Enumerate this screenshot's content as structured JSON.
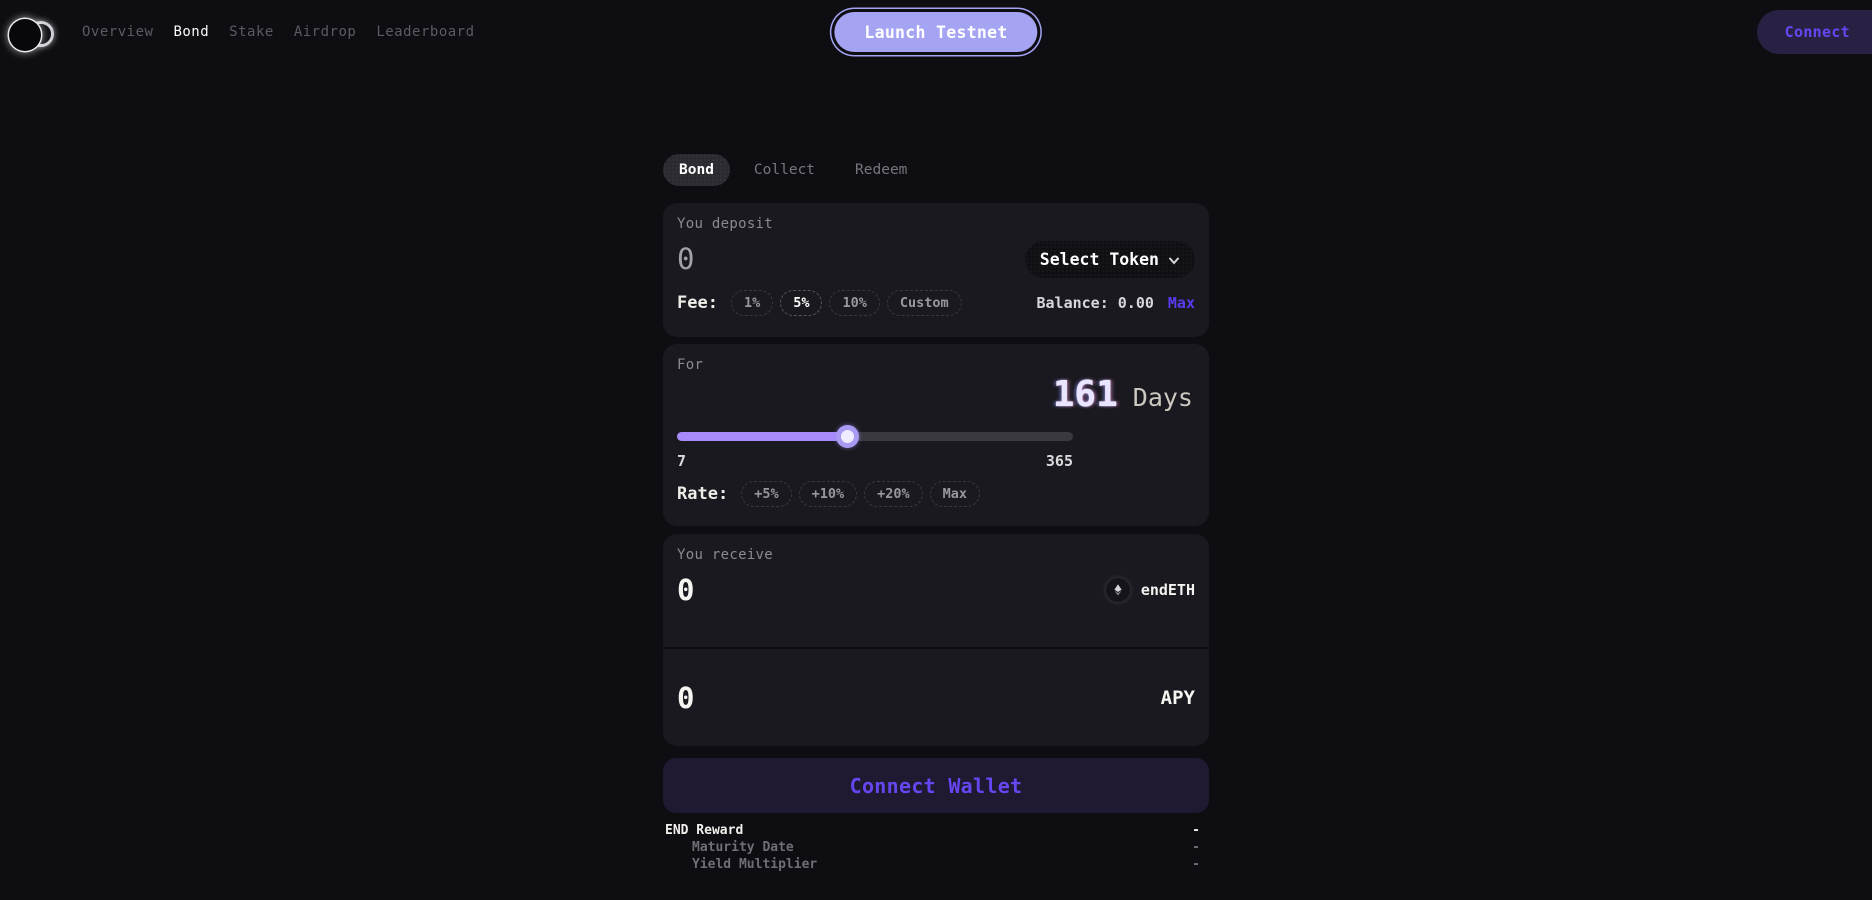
{
  "nav": {
    "links": [
      {
        "label": "Overview",
        "active": false
      },
      {
        "label": "Bond",
        "active": true
      },
      {
        "label": "Stake",
        "active": false
      },
      {
        "label": "Airdrop",
        "active": false
      },
      {
        "label": "Leaderboard",
        "active": false
      }
    ],
    "launch_button": "Launch Testnet",
    "connect_button": "Connect"
  },
  "tabs": [
    {
      "label": "Bond",
      "active": true
    },
    {
      "label": "Collect",
      "active": false
    },
    {
      "label": "Redeem",
      "active": false
    }
  ],
  "deposit_card": {
    "label": "You deposit",
    "amount": "0",
    "token_selector": "Select Token",
    "fee_label": "Fee:",
    "fee_options": [
      "1%",
      "5%",
      "10%",
      "Custom"
    ],
    "fee_selected": "5%",
    "balance_label": "Balance: 0.00",
    "max_label": "Max"
  },
  "duration_card": {
    "label": "For",
    "days_value": "161",
    "days_unit": "Days",
    "slider": {
      "min": "7",
      "max": "365",
      "value": 161,
      "percent": 43
    },
    "rate_label": "Rate:",
    "rate_options": [
      "+5%",
      "+10%",
      "+20%",
      "Max"
    ]
  },
  "receive_card": {
    "label": "You receive",
    "amount": "0",
    "token": "endETH",
    "apy_value": "0",
    "apy_label": "APY"
  },
  "action_button": "Connect Wallet",
  "summary": {
    "rows": [
      {
        "label": "END Reward",
        "value": "-",
        "primary": true
      },
      {
        "label": "Maturity Date",
        "value": "-",
        "primary": false
      },
      {
        "label": "Yield Multiplier",
        "value": "-",
        "primary": false
      }
    ]
  },
  "colors": {
    "page_bg": "#0e0d11",
    "card_bg": "#1a191f",
    "accent_lavender": "#a5a4f3",
    "accent_purple": "#6746f2",
    "max_purple": "#5b3bf0",
    "cta_bg": "#1f1931",
    "connect_bg": "#282144",
    "slider_fill": "#a78bfa",
    "slider_track": "#3a393f",
    "text_primary": "#f2f0ec",
    "text_muted": "#8b8a90",
    "nav_muted": "#5c5b61"
  }
}
